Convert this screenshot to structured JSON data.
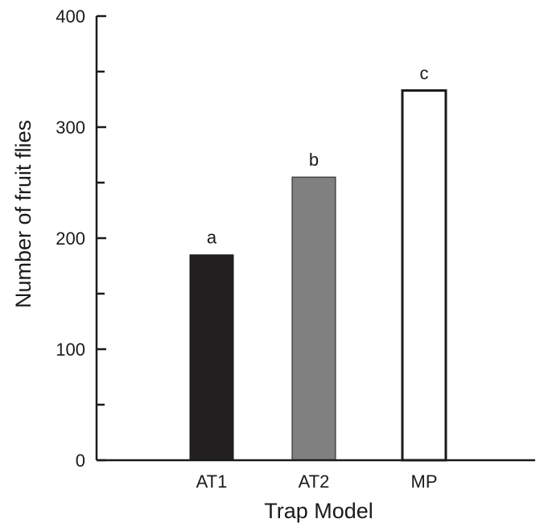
{
  "chart_data": {
    "type": "bar",
    "title": "",
    "xlabel": "Trap Model",
    "ylabel": "Number of fruit flies",
    "ylim": [
      0,
      400
    ],
    "major_ticks": [
      0,
      100,
      200,
      300,
      400
    ],
    "minor_ticks": [
      50,
      150,
      250,
      350
    ],
    "tick_labels": [
      "0",
      "100",
      "200",
      "300",
      "400"
    ],
    "categories": [
      "AT1",
      "AT2",
      "MP"
    ],
    "values": [
      185,
      255,
      333
    ],
    "significance_letters": [
      "a",
      "b",
      "c"
    ],
    "bar_colors": [
      "#231f20",
      "#808080",
      "#ffffff"
    ],
    "grid": false,
    "legend": "none"
  }
}
